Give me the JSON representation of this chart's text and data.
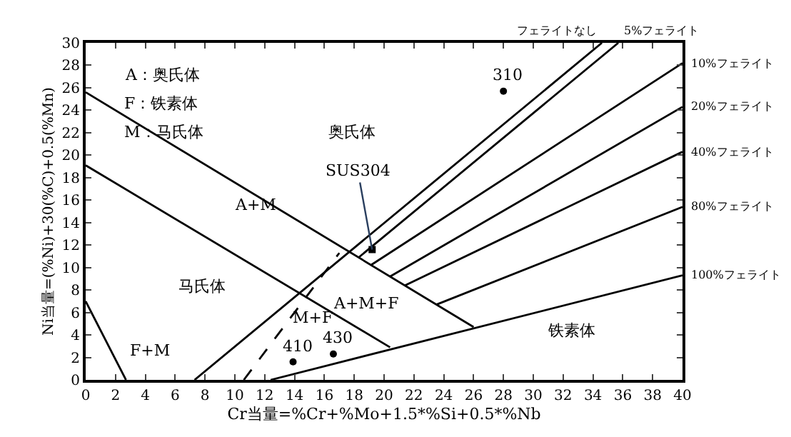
{
  "chart_data": {
    "type": "line",
    "xlabel": "Cr当量=%Cr+%Mo+1.5*%Si+0.5*%Nb",
    "ylabel": "Ni当量=(%Ni)+30(%C)+0.5(%Mn)",
    "xlim": [
      0,
      40
    ],
    "xticks": [
      0,
      2,
      4,
      6,
      8,
      10,
      12,
      14,
      16,
      18,
      20,
      22,
      24,
      26,
      28,
      30,
      32,
      34,
      36,
      38,
      40
    ],
    "ylim": [
      0,
      30
    ],
    "yticks": [
      0,
      2,
      4,
      6,
      8,
      10,
      12,
      14,
      16,
      18,
      20,
      22,
      24,
      26,
      28,
      30
    ],
    "grid": false,
    "marker": "none",
    "series": [
      {
        "color": "#000000",
        "x": [
          0,
          26
        ],
        "values": [
          25.6,
          4.7
        ]
      },
      {
        "color": "#000000",
        "x": [
          0,
          20.4
        ],
        "values": [
          19.1,
          2.9
        ]
      },
      {
        "color": "#000000",
        "x": [
          0,
          2.7
        ],
        "values": [
          7.0,
          0
        ]
      },
      {
        "name": "フェライトなし",
        "color": "#000000",
        "x": [
          7.3,
          34.6
        ],
        "values": [
          0,
          30
        ]
      },
      {
        "color": "#000000",
        "x": [
          10.6,
          17.0
        ],
        "values": [
          0,
          11.3
        ],
        "line_style": "dashed"
      },
      {
        "name": "5%フェライト",
        "color": "#000000",
        "x": [
          18.3,
          35.7
        ],
        "values": [
          10.9,
          30
        ]
      },
      {
        "name": "10%フェライト",
        "color": "#000000",
        "x": [
          19.1,
          40
        ],
        "values": [
          10.2,
          28.2
        ]
      },
      {
        "name": "20%フェライト",
        "color": "#000000",
        "x": [
          20.4,
          40
        ],
        "values": [
          9.2,
          24.3
        ]
      },
      {
        "name": "40%フェライト",
        "color": "#000000",
        "x": [
          21.4,
          40
        ],
        "values": [
          8.4,
          20.3
        ]
      },
      {
        "name": "80%フェライト",
        "color": "#000000",
        "x": [
          23.5,
          40
        ],
        "values": [
          6.7,
          15.4
        ]
      },
      {
        "name": "100%フェライト",
        "color": "#000000",
        "x": [
          12.4,
          40
        ],
        "values": [
          0,
          9.3
        ]
      },
      {
        "type": "scatter",
        "marker": "square",
        "color": "#000000",
        "x": [
          19.2
        ],
        "values": [
          11.6
        ]
      },
      {
        "type": "scatter",
        "marker": "circle",
        "color": "#000000",
        "x": [
          28.0,
          13.9,
          16.6
        ],
        "values": [
          25.7,
          1.6,
          2.3
        ]
      }
    ],
    "annotations": [
      "A：奥氏体",
      "F：铁素体",
      "M：马氏体",
      "奥氏体",
      "A+M",
      "马氏体",
      "A+M+F",
      "M+F",
      "铁素体",
      "F+M",
      {
        "text": "SUS304",
        "x": 19.2,
        "y": 11.6
      },
      {
        "text": "310",
        "x": 28.0,
        "y": 25.7
      },
      {
        "text": "410",
        "x": 13.9,
        "y": 1.6
      },
      {
        "text": "430",
        "x": 16.6,
        "y": 2.3
      }
    ]
  }
}
